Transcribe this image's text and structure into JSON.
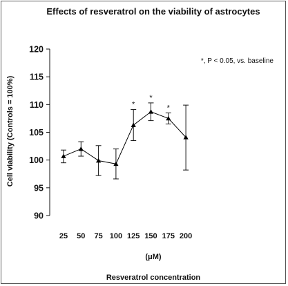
{
  "chart_data": {
    "type": "line",
    "title": "Effects of resveratrol on the viability of astrocytes",
    "ylabel": "Cell viability (Controls = 100%)",
    "xunit": "(μM)",
    "xlabel": "Resveratrol concentration",
    "annotation": "*, P < 0.05, vs. baseline",
    "categories": [
      "25",
      "50",
      "75",
      "100",
      "125",
      "150",
      "175",
      "200"
    ],
    "values": [
      100.7,
      102.0,
      99.9,
      99.3,
      106.3,
      108.7,
      107.5,
      104.1
    ],
    "error_upper": [
      101.8,
      103.3,
      102.6,
      102.0,
      109.1,
      110.3,
      108.5,
      109.9
    ],
    "error_lower": [
      99.5,
      100.7,
      97.2,
      96.6,
      103.5,
      107.1,
      106.5,
      98.2
    ],
    "significance": [
      "",
      "",
      "",
      "",
      "*",
      "*",
      "*",
      ""
    ],
    "yticks": [
      "90",
      "95",
      "100",
      "105",
      "110",
      "115",
      "120"
    ],
    "ylim": [
      90,
      120
    ],
    "grid": false,
    "marker": "triangle",
    "color": "#000000"
  }
}
